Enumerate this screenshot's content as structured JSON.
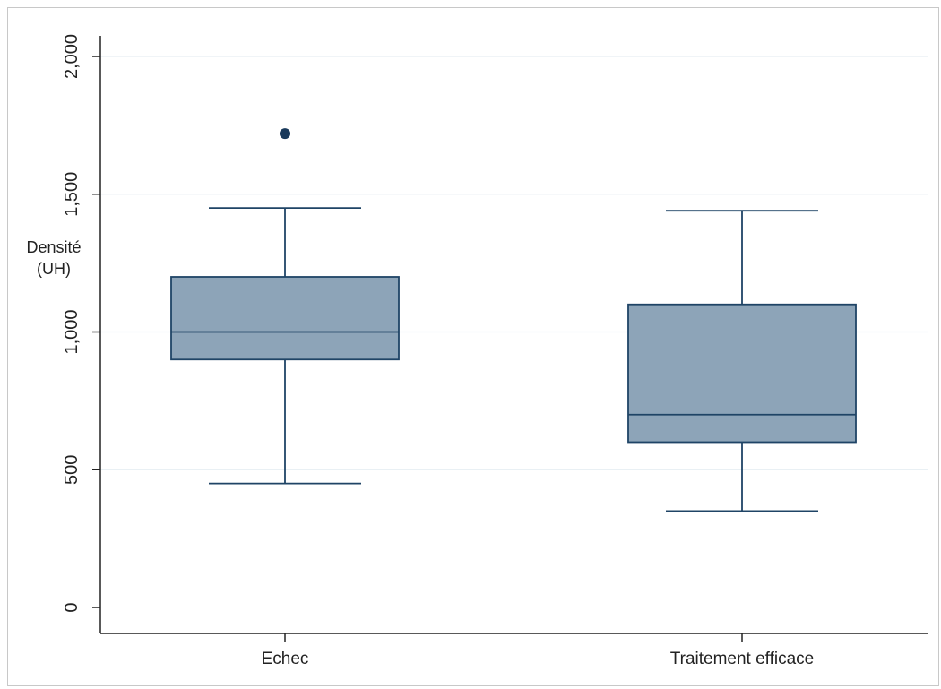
{
  "chart_data": {
    "type": "boxplot",
    "title": "",
    "ylabel_lines": [
      "Densité",
      "(UH)"
    ],
    "ylim": [
      0,
      2000
    ],
    "yticks": [
      {
        "value": 0,
        "label": "0"
      },
      {
        "value": 500,
        "label": "500"
      },
      {
        "value": 1000,
        "label": "1,000"
      },
      {
        "value": 1500,
        "label": "1,500"
      },
      {
        "value": 2000,
        "label": "2,000"
      }
    ],
    "grid": true,
    "categories": [
      "Echec",
      "Traitement efficace"
    ],
    "boxes": [
      {
        "category": "Echec",
        "whisker_low": 450,
        "q1": 900,
        "median": 1000,
        "q3": 1200,
        "whisker_high": 1450,
        "outliers": [
          1720
        ]
      },
      {
        "category": "Traitement efficace",
        "whisker_low": 350,
        "q1": 600,
        "median": 700,
        "q3": 1100,
        "whisker_high": 1440,
        "outliers": []
      }
    ],
    "colors": {
      "box_fill": "#8da4b8",
      "box_stroke": "#1f4466",
      "grid": "#e6eef2",
      "outlier": "#1a3a5c"
    }
  }
}
